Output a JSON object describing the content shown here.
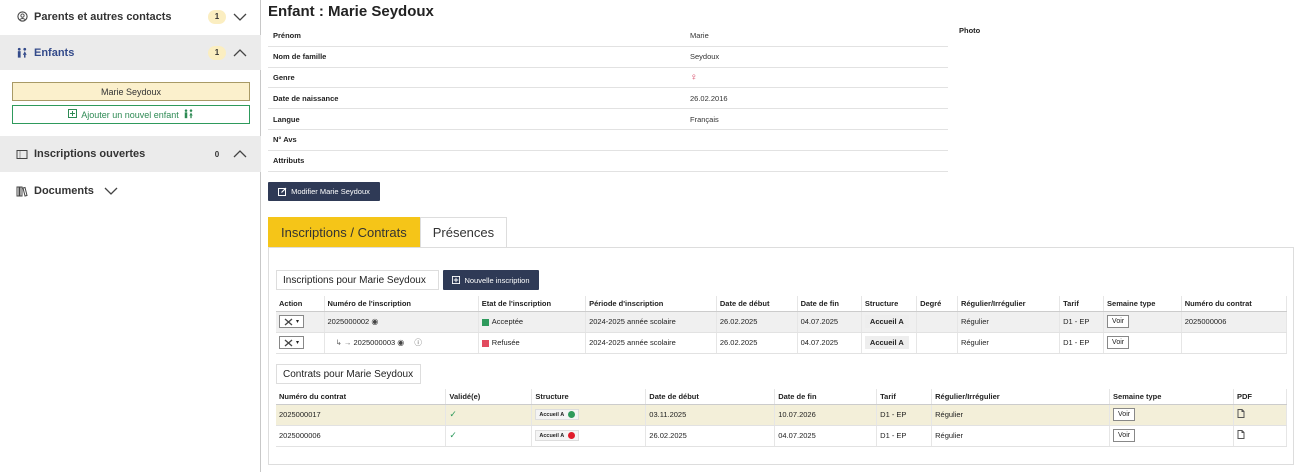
{
  "sidebar": {
    "parents": {
      "label": "Parents et autres contacts",
      "count": "1"
    },
    "enfants": {
      "label": "Enfants",
      "count": "1"
    },
    "child_name": "Marie Seydoux",
    "add_child": "Ajouter un nouvel enfant",
    "inscriptions": {
      "label": "Inscriptions ouvertes",
      "count": "0"
    },
    "documents": {
      "label": "Documents"
    }
  },
  "main": {
    "title": "Enfant : Marie Seydoux",
    "photo_label": "Photo",
    "fields": [
      {
        "label": "Prénom",
        "value": "Marie"
      },
      {
        "label": "Nom de famille",
        "value": "Seydoux"
      },
      {
        "label": "Genre",
        "value": ""
      },
      {
        "label": "Date de naissance",
        "value": "26.02.2016"
      },
      {
        "label": "Langue",
        "value": "Français"
      },
      {
        "label": "N° Avs",
        "value": ""
      },
      {
        "label": "Attributs",
        "value": ""
      }
    ],
    "edit_button": "Modifier Marie Seydoux",
    "tabs": [
      "Inscriptions / Contrats",
      "Présences"
    ]
  },
  "inscriptions": {
    "title": "Inscriptions pour Marie Seydoux",
    "new_button": "Nouvelle inscription",
    "headers": [
      "Action",
      "Numéro de l'inscription",
      "Etat de l'inscription",
      "Période d'inscription",
      "Date de début",
      "Date de fin",
      "Structure",
      "Degré",
      "Régulier/Irrégulier",
      "Tarif",
      "Semaine type",
      "Numéro du contrat"
    ],
    "rows": [
      {
        "number": "2025000002",
        "state": "Acceptée",
        "period": "2024-2025 année scolaire",
        "start": "26.02.2025",
        "end": "04.07.2025",
        "structure": "Accueil A",
        "degree": "",
        "regular": "Régulier",
        "tarif": "D1 - EP",
        "week": "Voir",
        "contract": "2025000006"
      },
      {
        "number": "2025000003",
        "state": "Refusée",
        "period": "2024-2025 année scolaire",
        "start": "26.02.2025",
        "end": "04.07.2025",
        "structure": "Accueil A",
        "degree": "",
        "regular": "Régulier",
        "tarif": "D1 - EP",
        "week": "Voir",
        "contract": ""
      }
    ]
  },
  "contracts": {
    "title": "Contrats pour Marie Seydoux",
    "headers": [
      "Numéro du contrat",
      "Validé(e)",
      "Structure",
      "Date de début",
      "Date de fin",
      "Tarif",
      "Régulier/Irrégulier",
      "Semaine type",
      "PDF"
    ],
    "rows": [
      {
        "number": "2025000017",
        "structure": "Accueil A",
        "status_color": "#2e9a5c",
        "start": "03.11.2025",
        "end": "10.07.2026",
        "tarif": "D1 - EP",
        "regular": "Régulier",
        "week": "Voir"
      },
      {
        "number": "2025000006",
        "structure": "Accueil A",
        "status_color": "#e01b2a",
        "start": "26.02.2025",
        "end": "04.07.2025",
        "tarif": "D1 - EP",
        "regular": "Régulier",
        "week": "Voir"
      }
    ]
  },
  "colors": {
    "accent": "#f5c518",
    "dark_button": "#2f3a56",
    "green": "#2e9a5c",
    "red": "#e24b5f"
  },
  "icons": [
    "user-circle-icon",
    "children-icon",
    "plus-square-icon",
    "ticket-icon",
    "library-icon",
    "chevron-icon",
    "edit-icon",
    "eye-icon",
    "info-icon",
    "tools-icon",
    "check-icon",
    "pdf-icon",
    "female-icon"
  ]
}
